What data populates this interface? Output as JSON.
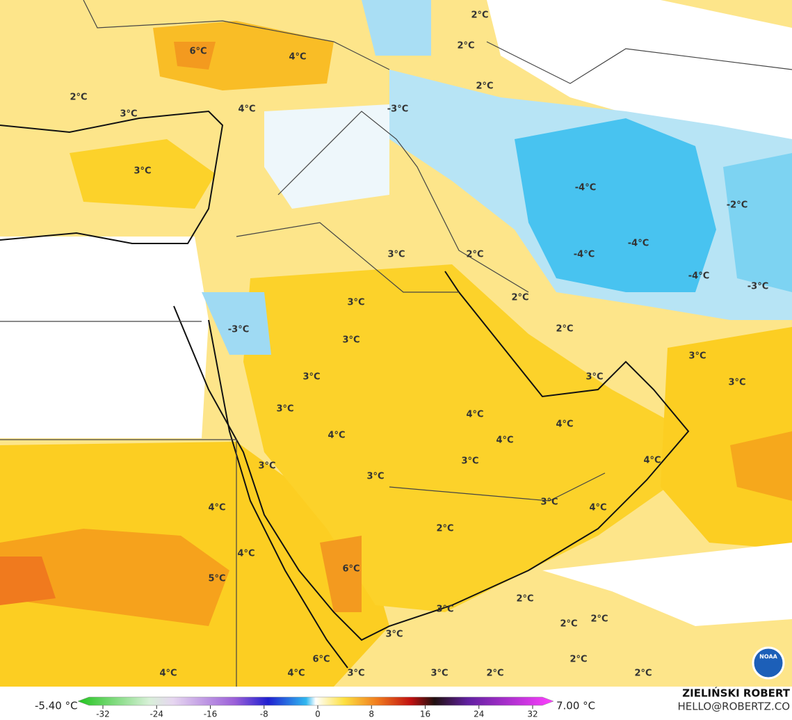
{
  "map": {
    "labels": [
      "2°C",
      "6°C",
      "4°C",
      "2°C",
      "2°C",
      "2°C",
      "3°C",
      "4°C",
      "-3°C",
      "3°C",
      "-4°C",
      "-2°C",
      "3°C",
      "2°C",
      "-4°C",
      "-4°C",
      "-4°C",
      "-3°C",
      "2°C",
      "3°C",
      "-3°C",
      "2°C",
      "3°C",
      "3°C",
      "3°C",
      "3°C",
      "3°C",
      "3°C",
      "4°C",
      "4°C",
      "4°C",
      "4°C",
      "4°C",
      "3°C",
      "3°C",
      "3°C",
      "3°C",
      "4°C",
      "4°C",
      "2°C",
      "4°C",
      "6°C",
      "5°C",
      "2°C",
      "3°C",
      "2°C",
      "2°C",
      "3°C",
      "2°C",
      "6°C",
      "4°C",
      "4°C",
      "3°C",
      "3°C",
      "2°C",
      "2°C"
    ]
  },
  "colorbar": {
    "min_label": "-5.40 °C",
    "max_label": "7.00 °C",
    "ticks": [
      -32,
      -24,
      -16,
      -8,
      0,
      8,
      16,
      24,
      32
    ]
  },
  "credit": {
    "name": "ZIELIŃSKI ROBERT",
    "contact": "HELLO@ROBERTZ.CO",
    "logo": "NOAA"
  }
}
